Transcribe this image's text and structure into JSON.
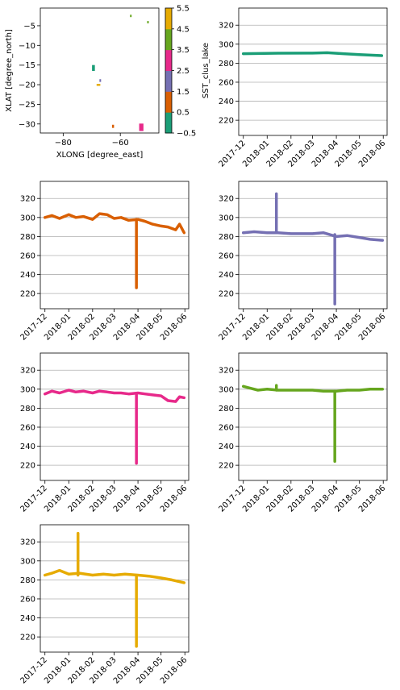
{
  "chart_data": [
    {
      "type": "scatter",
      "xlabel": "XLONG [degree_east]",
      "ylabel": "XLAT [degree_north]",
      "xlim": [
        -88,
        -46.5
      ],
      "ylim": [
        -32.3,
        -0.5
      ],
      "x_ticks": [
        -80,
        -60
      ],
      "x_tick_labels": [
        "−80",
        "−60"
      ],
      "y_ticks": [
        -5,
        -10,
        -15,
        -20,
        -25,
        -30
      ],
      "y_tick_labels": [
        "−5",
        "−10",
        "−15",
        "−20",
        "−25",
        "−30"
      ],
      "colorbar": {
        "label": "SST_clus_lake",
        "ticks": [
          -0.5,
          0.5,
          1.5,
          2.5,
          3.5,
          4.5,
          5.5
        ],
        "tick_labels": [
          "−0.5",
          "0.5",
          "1.5",
          "2.5",
          "3.5",
          "4.5",
          "5.5"
        ],
        "colors": [
          "#1b9e77",
          "#d95f02",
          "#7570b3",
          "#e7298a",
          "#66a61e",
          "#e6ab02"
        ]
      },
      "points": [
        {
          "cluster": 0,
          "x": [
            -69.9,
            -68.9
          ],
          "y": [
            -16.5,
            -15.0
          ]
        },
        {
          "cluster": 1,
          "x": [
            -62.9,
            -62.2
          ],
          "y": [
            -31.0,
            -30.2
          ]
        },
        {
          "cluster": 2,
          "x": [
            -67.3,
            -66.9
          ],
          "y": [
            -19.3,
            -18.6
          ]
        },
        {
          "cluster": 3,
          "x": [
            -53.4,
            -51.9
          ],
          "y": [
            -31.8,
            -29.9
          ]
        },
        {
          "cluster": 4,
          "x": [
            -56.6,
            -56.2
          ],
          "y": [
            -2.8,
            -2.2
          ]
        },
        {
          "cluster": 4,
          "x": [
            -50.6,
            -50.2
          ],
          "y": [
            -4.4,
            -3.8
          ]
        },
        {
          "cluster": 5,
          "x": [
            -68.3,
            -67.0
          ],
          "y": [
            -20.3,
            -19.8
          ]
        }
      ]
    },
    {
      "type": "line",
      "cluster": 0,
      "color": "#1b9e77",
      "x_tick_labels": [
        "2017-12",
        "2018-01",
        "2018-02",
        "2018-03",
        "2018-04",
        "2018-05",
        "2018-06"
      ],
      "y_ticks": [
        220,
        240,
        260,
        280,
        300,
        320
      ],
      "ylim": [
        204,
        338
      ],
      "grid": "horizontal",
      "series": [
        {
          "x": [
            "2017-12-01",
            "2018-01-15",
            "2018-03-01",
            "2018-03-20",
            "2018-04-10",
            "2018-05-01",
            "2018-05-30"
          ],
          "y": [
            290,
            290.5,
            290.6,
            291,
            290,
            289,
            288
          ]
        }
      ],
      "spikes": []
    },
    {
      "type": "line",
      "cluster": 1,
      "color": "#d95f02",
      "x_tick_labels": [
        "2017-12",
        "2018-01",
        "2018-02",
        "2018-03",
        "2018-04",
        "2018-05",
        "2018-06"
      ],
      "y_ticks": [
        220,
        240,
        260,
        280,
        300,
        320
      ],
      "ylim": [
        204,
        338
      ],
      "grid": "horizontal",
      "series": [
        {
          "x": [
            "2017-12-01",
            "2017-12-10",
            "2017-12-20",
            "2018-01-01",
            "2018-01-10",
            "2018-01-20",
            "2018-02-01",
            "2018-02-10",
            "2018-02-20",
            "2018-03-01",
            "2018-03-10",
            "2018-03-20",
            "2018-04-01",
            "2018-04-10",
            "2018-04-20",
            "2018-05-01",
            "2018-05-10",
            "2018-05-20",
            "2018-05-25",
            "2018-05-31"
          ],
          "y": [
            300,
            302,
            299,
            303,
            300,
            301,
            298,
            304,
            303,
            299,
            300,
            297,
            298,
            296,
            293,
            291,
            290,
            287,
            293,
            284
          ]
        }
      ],
      "spikes": [
        {
          "x": "2018-03-30",
          "y_from": 298,
          "y_to": 226
        }
      ]
    },
    {
      "type": "line",
      "cluster": 2,
      "color": "#7570b3",
      "x_tick_labels": [
        "2017-12",
        "2018-01",
        "2018-02",
        "2018-03",
        "2018-04",
        "2018-05",
        "2018-06"
      ],
      "y_ticks": [
        220,
        240,
        260,
        280,
        300,
        320
      ],
      "ylim": [
        204,
        338
      ],
      "grid": "horizontal",
      "series": [
        {
          "x": [
            "2017-12-01",
            "2017-12-15",
            "2018-01-01",
            "2018-01-15",
            "2018-02-01",
            "2018-02-15",
            "2018-03-01",
            "2018-03-15",
            "2018-04-01",
            "2018-04-15",
            "2018-05-01",
            "2018-05-15",
            "2018-05-31"
          ],
          "y": [
            284,
            285,
            284,
            284,
            283,
            283,
            283,
            284,
            280,
            281,
            279,
            277,
            276
          ]
        }
      ],
      "spikes": [
        {
          "x": "2018-01-13",
          "y_from": 284,
          "y_to": 325
        },
        {
          "x": "2018-03-30",
          "y_from": 282,
          "y_to": 209
        }
      ]
    },
    {
      "type": "line",
      "cluster": 3,
      "color": "#e7298a",
      "x_tick_labels": [
        "2017-12",
        "2018-01",
        "2018-02",
        "2018-03",
        "2018-04",
        "2018-05",
        "2018-06"
      ],
      "y_ticks": [
        220,
        240,
        260,
        280,
        300,
        320
      ],
      "ylim": [
        204,
        338
      ],
      "grid": "horizontal",
      "series": [
        {
          "x": [
            "2017-12-01",
            "2017-12-10",
            "2017-12-20",
            "2018-01-01",
            "2018-01-10",
            "2018-01-20",
            "2018-02-01",
            "2018-02-10",
            "2018-02-20",
            "2018-03-01",
            "2018-03-10",
            "2018-03-20",
            "2018-04-01",
            "2018-04-10",
            "2018-04-20",
            "2018-05-01",
            "2018-05-10",
            "2018-05-20",
            "2018-05-25",
            "2018-05-31"
          ],
          "y": [
            295,
            298,
            296,
            299,
            297,
            298,
            296,
            298,
            297,
            296,
            296,
            295,
            296,
            295,
            294,
            293,
            288,
            287,
            292,
            291
          ]
        }
      ],
      "spikes": [
        {
          "x": "2018-03-30",
          "y_from": 295,
          "y_to": 222
        }
      ]
    },
    {
      "type": "line",
      "cluster": 4,
      "color": "#66a61e",
      "x_tick_labels": [
        "2017-12",
        "2018-01",
        "2018-02",
        "2018-03",
        "2018-04",
        "2018-05",
        "2018-06"
      ],
      "y_ticks": [
        220,
        240,
        260,
        280,
        300,
        320
      ],
      "ylim": [
        204,
        338
      ],
      "grid": "horizontal",
      "series": [
        {
          "x": [
            "2017-12-01",
            "2017-12-10",
            "2017-12-20",
            "2018-01-01",
            "2018-01-15",
            "2018-02-01",
            "2018-02-15",
            "2018-03-01",
            "2018-03-15",
            "2018-04-01",
            "2018-04-15",
            "2018-05-01",
            "2018-05-15",
            "2018-05-31"
          ],
          "y": [
            303,
            301,
            299,
            300,
            299,
            299,
            299,
            299,
            298,
            298,
            299,
            299,
            300,
            300
          ]
        }
      ],
      "spikes": [
        {
          "x": "2018-01-13",
          "y_from": 299,
          "y_to": 304
        },
        {
          "x": "2018-03-30",
          "y_from": 298,
          "y_to": 224
        }
      ]
    },
    {
      "type": "line",
      "cluster": 5,
      "color": "#e6ab02",
      "x_tick_labels": [
        "2017-12",
        "2018-01",
        "2018-02",
        "2018-03",
        "2018-04",
        "2018-05",
        "2018-06"
      ],
      "y_ticks": [
        220,
        240,
        260,
        280,
        300,
        320
      ],
      "ylim": [
        204,
        338
      ],
      "grid": "horizontal",
      "series": [
        {
          "x": [
            "2017-12-01",
            "2017-12-10",
            "2017-12-20",
            "2018-01-01",
            "2018-01-15",
            "2018-02-01",
            "2018-02-15",
            "2018-03-01",
            "2018-03-15",
            "2018-04-01",
            "2018-04-15",
            "2018-05-01",
            "2018-05-15",
            "2018-05-31"
          ],
          "y": [
            285,
            287,
            290,
            286,
            287,
            285,
            286,
            285,
            286,
            285,
            284,
            282,
            280,
            277
          ]
        }
      ],
      "spikes": [
        {
          "x": "2018-01-13",
          "y_from": 285,
          "y_to": 329
        },
        {
          "x": "2018-03-30",
          "y_from": 284,
          "y_to": 210
        }
      ]
    }
  ]
}
